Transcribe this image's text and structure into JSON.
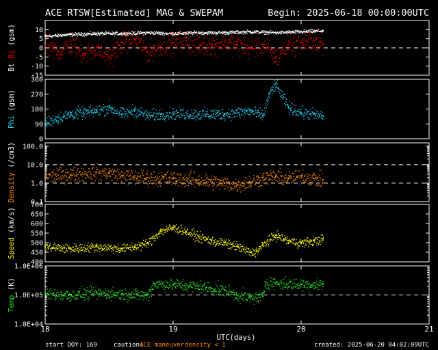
{
  "header": {
    "title": "ACE RTSW[Estimated] MAG & SWEPAM",
    "begin": "Begin: 2025-06-18 00:00:00UTC"
  },
  "footer": {
    "start_doy": "start DOY: 169",
    "caution_label": "caution:",
    "caution_maneuver": "ACE maneuver",
    "caution_density": "density < 1",
    "created": "created: 2025-06-20 04:02:09UTC"
  },
  "colors": {
    "bt": "#ffffff",
    "bz": "#ee0000",
    "phi": "#22ccee",
    "density": "#ff8c00",
    "speed": "#ffff00",
    "temp": "#22dd22",
    "caution_maneuver": "#ff8c00",
    "caution_density": "#ff8c00",
    "text": "#ffffff",
    "background": "#000000"
  },
  "chart_data": {
    "type": "line",
    "xlabel": "UTC(days)",
    "xlim": [
      18,
      21
    ],
    "x_ticks": [
      "18",
      "19",
      "20",
      "21"
    ],
    "data_end_day": 20.17,
    "panels": [
      {
        "id": "mag",
        "ylabel": [
          "Bt",
          "Bz",
          "(gsm)"
        ],
        "ylabel_colors": [
          "#ffffff",
          "#ee0000",
          "#ffffff"
        ],
        "scale": "linear",
        "ylim": [
          -15,
          15
        ],
        "ticks": [
          10,
          5,
          0,
          -5,
          -10,
          -15
        ],
        "tick_labels": [
          "10",
          "5",
          "0",
          "-5",
          "-10",
          "-15"
        ],
        "ref_lines": [
          0
        ],
        "series": [
          {
            "name": "Bt",
            "color": "#ffffff",
            "x": [
              18.0,
              18.2,
              18.4,
              18.6,
              18.8,
              19.0,
              19.2,
              19.4,
              19.6,
              19.8,
              20.0,
              20.17
            ],
            "y": [
              6.5,
              7.5,
              8,
              8,
              8.5,
              8,
              8.5,
              8.5,
              9,
              8.5,
              9,
              9.5
            ],
            "noise": 0.6
          },
          {
            "name": "Bz",
            "color": "#ee0000",
            "x": [
              18.0,
              18.1,
              18.2,
              18.3,
              18.4,
              18.5,
              18.6,
              18.7,
              18.8,
              18.9,
              19.0,
              19.1,
              19.2,
              19.3,
              19.4,
              19.5,
              19.6,
              19.7,
              19.8,
              19.9,
              20.0,
              20.1,
              20.17
            ],
            "y": [
              1,
              -2,
              2,
              -3,
              0,
              -5,
              3,
              5,
              -2,
              1,
              3,
              4,
              1,
              2,
              3,
              2,
              0,
              2,
              -5,
              2,
              3,
              4,
              2
            ],
            "noise": 3.5
          }
        ]
      },
      {
        "id": "phi",
        "ylabel": [
          "Phi",
          "(gsm)"
        ],
        "ylabel_colors": [
          "#22ccee",
          "#ffffff"
        ],
        "scale": "linear",
        "ylim": [
          0,
          360
        ],
        "ticks": [
          360,
          270,
          180,
          90,
          0
        ],
        "tick_labels": [
          "360",
          "270",
          "180",
          "90",
          "0"
        ],
        "ref_lines": [],
        "series": [
          {
            "name": "Phi",
            "color": "#22ccee",
            "x": [
              18.0,
              18.1,
              18.2,
              18.3,
              18.4,
              18.5,
              18.6,
              18.7,
              18.8,
              18.9,
              19.0,
              19.2,
              19.4,
              19.6,
              19.7,
              19.75,
              19.8,
              19.9,
              20.0,
              20.1,
              20.17
            ],
            "y": [
              95,
              130,
              150,
              160,
              170,
              190,
              150,
              175,
              140,
              150,
              155,
              150,
              150,
              170,
              140,
              270,
              330,
              190,
              160,
              150,
              140
            ],
            "noise": 22
          }
        ]
      },
      {
        "id": "density",
        "ylabel": [
          "Density",
          "(/cm3)"
        ],
        "ylabel_colors": [
          "#ff8c00",
          "#ffffff"
        ],
        "scale": "log",
        "ylim": [
          0.1,
          150
        ],
        "ticks": [
          100,
          10,
          1,
          0.1
        ],
        "tick_labels": [
          "100.0",
          "10.0",
          "1.0",
          "0.1"
        ],
        "ref_lines": [
          10,
          1
        ],
        "series": [
          {
            "name": "Density",
            "color": "#ff8c00",
            "x": [
              18.0,
              18.2,
              18.4,
              18.5,
              18.6,
              18.8,
              19.0,
              19.2,
              19.4,
              19.5,
              19.6,
              19.7,
              19.8,
              19.9,
              20.0,
              20.1,
              20.17
            ],
            "y": [
              2.5,
              3.0,
              4.0,
              3.5,
              2.5,
              2.0,
              1.8,
              1.5,
              1.0,
              0.8,
              1.2,
              2.0,
              2.2,
              1.8,
              2.5,
              1.8,
              1.5
            ],
            "noise": 0.25
          }
        ]
      },
      {
        "id": "speed",
        "ylabel": [
          "Speed",
          "(km/s)"
        ],
        "ylabel_colors": [
          "#ffff00",
          "#ffffff"
        ],
        "scale": "linear",
        "ylim": [
          400,
          700
        ],
        "ticks": [
          700,
          650,
          600,
          550,
          500,
          450,
          400
        ],
        "tick_labels": [
          "700",
          "650",
          "600",
          "550",
          "500",
          "450",
          "400"
        ],
        "ref_lines": [],
        "series": [
          {
            "name": "Speed",
            "color": "#ffff00",
            "x": [
              18.0,
              18.2,
              18.4,
              18.6,
              18.7,
              18.8,
              18.9,
              19.0,
              19.1,
              19.2,
              19.3,
              19.4,
              19.5,
              19.6,
              19.65,
              19.7,
              19.8,
              19.9,
              20.0,
              20.1,
              20.17
            ],
            "y": [
              480,
              470,
              480,
              470,
              480,
              500,
              560,
              580,
              560,
              530,
              510,
              500,
              480,
              450,
              455,
              490,
              540,
              510,
              500,
              510,
              520
            ],
            "noise": 15
          }
        ]
      },
      {
        "id": "temp",
        "ylabel": [
          "Temp",
          "(K)"
        ],
        "ylabel_colors": [
          "#22dd22",
          "#ffffff"
        ],
        "scale": "log",
        "ylim": [
          10000,
          1000000
        ],
        "ticks": [
          1000000,
          100000,
          10000
        ],
        "tick_labels": [
          "1.0E+06",
          "1.0E+05",
          "1.0E+04"
        ],
        "ref_lines": [
          100000
        ],
        "series": [
          {
            "name": "Temp",
            "color": "#22dd22",
            "x": [
              18.0,
              18.2,
              18.4,
              18.6,
              18.8,
              18.85,
              19.0,
              19.2,
              19.4,
              19.5,
              19.6,
              19.7,
              19.72,
              19.8,
              20.0,
              20.17
            ],
            "y": [
              110000,
              100000,
              120000,
              110000,
              100000,
              250000,
              230000,
              200000,
              150000,
              100000,
              80000,
              90000,
              280000,
              260000,
              230000,
              240000
            ],
            "noise": 0.13
          }
        ]
      }
    ]
  }
}
